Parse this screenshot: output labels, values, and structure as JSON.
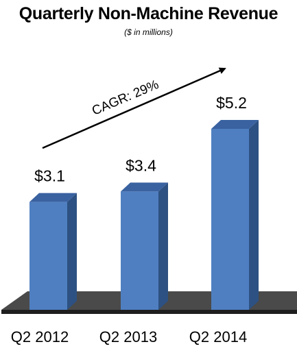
{
  "chart_data": {
    "type": "bar",
    "title": "Quarterly Non-Machine Revenue",
    "subtitle": "($ in millions)",
    "categories": [
      "Q2 2012",
      "Q2 2013",
      "Q2 2014"
    ],
    "values": [
      3.1,
      3.4,
      5.2
    ],
    "data_labels": [
      "$3.1",
      "$3.4",
      "$5.2"
    ],
    "ylim": [
      0,
      6
    ],
    "grid": false,
    "style": "3d",
    "annotation": "CAGR: 29%",
    "colors": {
      "bar_front": "#4f7fc1",
      "bar_side": "#2d5182",
      "bar_top": "#3a62a0",
      "floor": "#4a4a4a",
      "floor_edge": "#1e1e1e"
    }
  }
}
